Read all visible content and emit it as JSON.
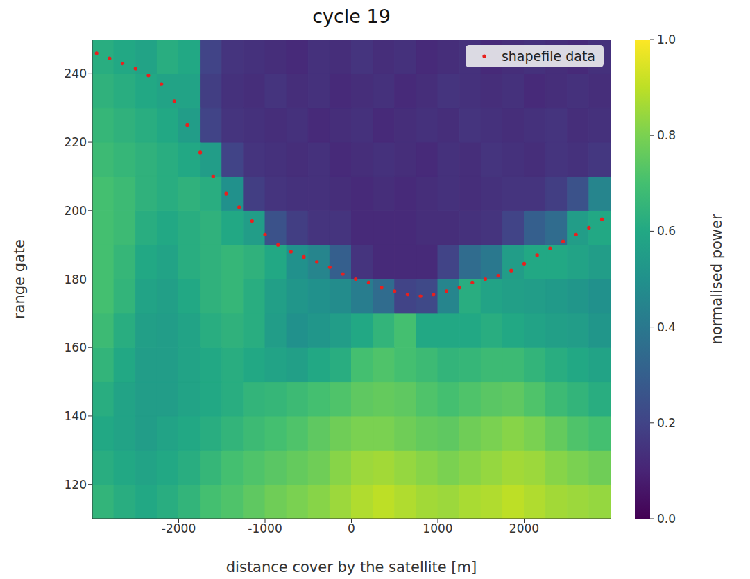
{
  "chart_data": {
    "type": "heatmap",
    "title": "cycle 19",
    "x_label": "distance cover by the satellite [m]",
    "y_label": "range gate",
    "xlim": [
      -3000,
      3000
    ],
    "xticks": [
      -2000,
      -1000,
      0,
      1000,
      2000
    ],
    "ylim": [
      110,
      250
    ],
    "yticks": [
      120,
      140,
      160,
      180,
      200,
      220,
      240
    ],
    "grid": false,
    "legend": "upper right",
    "heatmap": {
      "x_edges": [
        -3000,
        -2750,
        -2500,
        -2250,
        -2000,
        -1750,
        -1500,
        -1250,
        -1000,
        -750,
        -500,
        -250,
        0,
        250,
        500,
        750,
        1000,
        1250,
        1500,
        1750,
        2000,
        2250,
        2500,
        2750,
        3000
      ],
      "y_edges": [
        110,
        120,
        130,
        140,
        150,
        160,
        170,
        180,
        190,
        200,
        210,
        220,
        230,
        240,
        250
      ],
      "values": [
        [
          0.65,
          0.62,
          0.6,
          0.62,
          0.65,
          0.7,
          0.72,
          0.75,
          0.78,
          0.8,
          0.82,
          0.85,
          0.88,
          0.9,
          0.88,
          0.86,
          0.85,
          0.87,
          0.88,
          0.9,
          0.88,
          0.86,
          0.85,
          0.84
        ],
        [
          0.62,
          0.6,
          0.58,
          0.6,
          0.62,
          0.66,
          0.7,
          0.72,
          0.74,
          0.76,
          0.78,
          0.82,
          0.85,
          0.86,
          0.84,
          0.82,
          0.8,
          0.82,
          0.84,
          0.86,
          0.85,
          0.82,
          0.8,
          0.78
        ],
        [
          0.6,
          0.58,
          0.55,
          0.58,
          0.6,
          0.62,
          0.65,
          0.68,
          0.7,
          0.72,
          0.75,
          0.78,
          0.8,
          0.8,
          0.78,
          0.76,
          0.75,
          0.78,
          0.8,
          0.82,
          0.8,
          0.76,
          0.72,
          0.7
        ],
        [
          0.62,
          0.58,
          0.55,
          0.55,
          0.58,
          0.6,
          0.62,
          0.65,
          0.66,
          0.68,
          0.7,
          0.72,
          0.75,
          0.76,
          0.75,
          0.72,
          0.7,
          0.72,
          0.74,
          0.75,
          0.72,
          0.68,
          0.65,
          0.62
        ],
        [
          0.65,
          0.6,
          0.55,
          0.55,
          0.58,
          0.6,
          0.62,
          0.6,
          0.58,
          0.56,
          0.6,
          0.62,
          0.7,
          0.72,
          0.7,
          0.68,
          0.65,
          0.66,
          0.68,
          0.68,
          0.65,
          0.62,
          0.6,
          0.58
        ],
        [
          0.68,
          0.62,
          0.56,
          0.55,
          0.58,
          0.62,
          0.64,
          0.62,
          0.55,
          0.5,
          0.52,
          0.55,
          0.6,
          0.65,
          0.7,
          0.6,
          0.6,
          0.6,
          0.62,
          0.6,
          0.58,
          0.56,
          0.55,
          0.52
        ],
        [
          0.7,
          0.65,
          0.58,
          0.56,
          0.6,
          0.64,
          0.66,
          0.62,
          0.56,
          0.52,
          0.5,
          0.48,
          0.42,
          0.35,
          0.2,
          0.22,
          0.45,
          0.62,
          0.58,
          0.56,
          0.55,
          0.54,
          0.52,
          0.5
        ],
        [
          0.7,
          0.66,
          0.6,
          0.58,
          0.62,
          0.64,
          0.66,
          0.64,
          0.6,
          0.5,
          0.45,
          0.3,
          0.15,
          0.12,
          0.12,
          0.12,
          0.2,
          0.35,
          0.4,
          0.55,
          0.6,
          0.6,
          0.58,
          0.55
        ],
        [
          0.7,
          0.68,
          0.62,
          0.6,
          0.62,
          0.64,
          0.6,
          0.55,
          0.25,
          0.18,
          0.15,
          0.15,
          0.12,
          0.12,
          0.12,
          0.13,
          0.13,
          0.14,
          0.15,
          0.2,
          0.3,
          0.35,
          0.55,
          0.6
        ],
        [
          0.7,
          0.68,
          0.64,
          0.62,
          0.64,
          0.62,
          0.5,
          0.18,
          0.15,
          0.14,
          0.14,
          0.13,
          0.12,
          0.13,
          0.12,
          0.13,
          0.14,
          0.13,
          0.14,
          0.15,
          0.15,
          0.18,
          0.25,
          0.45
        ],
        [
          0.68,
          0.66,
          0.64,
          0.62,
          0.6,
          0.55,
          0.2,
          0.15,
          0.14,
          0.13,
          0.14,
          0.12,
          0.13,
          0.14,
          0.13,
          0.12,
          0.14,
          0.13,
          0.15,
          0.14,
          0.13,
          0.15,
          0.14,
          0.16
        ],
        [
          0.66,
          0.64,
          0.62,
          0.6,
          0.55,
          0.2,
          0.15,
          0.14,
          0.13,
          0.14,
          0.12,
          0.13,
          0.14,
          0.12,
          0.13,
          0.14,
          0.13,
          0.15,
          0.14,
          0.13,
          0.14,
          0.15,
          0.13,
          0.14
        ],
        [
          0.64,
          0.62,
          0.6,
          0.58,
          0.58,
          0.18,
          0.14,
          0.13,
          0.15,
          0.13,
          0.14,
          0.12,
          0.13,
          0.14,
          0.12,
          0.13,
          0.15,
          0.14,
          0.13,
          0.14,
          0.12,
          0.13,
          0.14,
          0.13
        ],
        [
          0.62,
          0.6,
          0.58,
          0.62,
          0.6,
          0.2,
          0.15,
          0.14,
          0.13,
          0.12,
          0.14,
          0.13,
          0.15,
          0.13,
          0.14,
          0.12,
          0.13,
          0.14,
          0.12,
          0.13,
          0.14,
          0.13,
          0.12,
          0.14
        ]
      ]
    },
    "colorbar": {
      "label": "normalised power",
      "range": [
        0,
        1
      ],
      "ticks": [
        {
          "value": 0,
          "label": "0.0"
        },
        0.2,
        0.4,
        0.6,
        0.8,
        {
          "value": 1,
          "label": "1.0"
        }
      ]
    },
    "series": [
      {
        "name": "shapefile data",
        "type": "scatter",
        "marker": "circle",
        "color": "#e8201e",
        "x": [
          -2950,
          -2800,
          -2650,
          -2500,
          -2350,
          -2200,
          -2050,
          -1900,
          -1750,
          -1600,
          -1450,
          -1300,
          -1150,
          -1000,
          -850,
          -700,
          -550,
          -400,
          -250,
          -100,
          50,
          200,
          350,
          500,
          650,
          800,
          950,
          1100,
          1250,
          1400,
          1550,
          1700,
          1850,
          2000,
          2150,
          2300,
          2450,
          2600,
          2750,
          2900
        ],
        "values": [
          246,
          244.5,
          243,
          241.5,
          239.5,
          237,
          232,
          225,
          217,
          210,
          205,
          201,
          197,
          193,
          190,
          188,
          186.5,
          185,
          183.5,
          181.5,
          180,
          179,
          177.5,
          176.5,
          175.5,
          175,
          175.5,
          176.5,
          177.5,
          179,
          180,
          181,
          182.5,
          184.5,
          187,
          189,
          191,
          193,
          195,
          197.5
        ]
      }
    ]
  }
}
